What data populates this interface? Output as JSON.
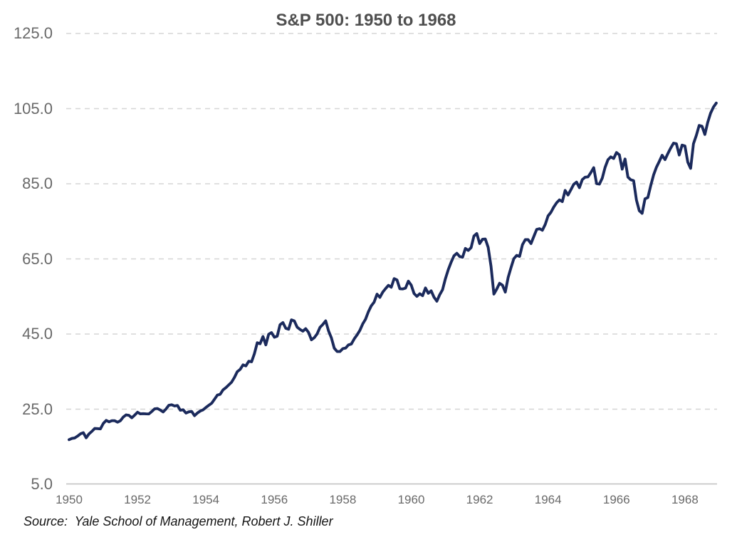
{
  "title": "S&P 500: 1950 to 1968",
  "source_note": "Source:  Yale School of Management, Robert J. Shiller",
  "colors": {
    "line": "#1b2a5c",
    "grid": "#d6d6d6",
    "axis_baseline": "#bfbfbf",
    "title_text": "#4f4f4f",
    "tick_text": "#696969",
    "source_text": "#141414",
    "background": "#ffffff"
  },
  "y_axis": {
    "tick_labels": [
      "125.0",
      "105.0",
      "85.0",
      "65.0",
      "45.0",
      "25.0",
      "5.0"
    ],
    "min": 5.0,
    "max": 125.0,
    "step": 20.0
  },
  "x_axis": {
    "tick_labels": [
      "1950",
      "1952",
      "1954",
      "1956",
      "1958",
      "1960",
      "1962",
      "1964",
      "1966",
      "1968"
    ],
    "min": 1950,
    "max": 1969
  },
  "chart_data": {
    "type": "line",
    "title": "S&P 500: 1950 to 1968",
    "xlabel": "",
    "ylabel": "",
    "ylim": [
      5.0,
      125.0
    ],
    "xlim": [
      1950,
      1969
    ],
    "grid": "horizontal-dashed",
    "legend_position": "none",
    "series": [
      {
        "name": "S&P 500",
        "frequency": "monthly",
        "start_year": 1950,
        "end_year": 1968,
        "values": [
          16.88,
          17.21,
          17.35,
          17.84,
          18.44,
          18.74,
          17.38,
          18.43,
          19.08,
          19.87,
          19.83,
          19.75,
          21.21,
          22.0,
          21.63,
          21.92,
          21.93,
          21.55,
          21.93,
          22.89,
          23.48,
          23.36,
          22.71,
          23.41,
          24.19,
          23.75,
          23.81,
          23.74,
          23.73,
          24.38,
          25.08,
          25.18,
          24.78,
          24.26,
          25.03,
          26.04,
          26.18,
          25.86,
          25.99,
          24.71,
          24.84,
          23.95,
          24.29,
          24.39,
          23.27,
          23.97,
          24.5,
          24.83,
          25.46,
          26.02,
          26.57,
          27.63,
          28.73,
          28.96,
          30.13,
          30.73,
          31.45,
          32.18,
          33.44,
          34.97,
          35.6,
          36.79,
          36.5,
          37.76,
          37.6,
          39.78,
          42.69,
          42.43,
          44.34,
          42.11,
          44.95,
          45.37,
          44.15,
          44.43,
          47.49,
          48.05,
          46.54,
          46.27,
          48.78,
          48.49,
          46.84,
          46.24,
          45.76,
          46.44,
          45.43,
          43.47,
          44.03,
          45.05,
          46.78,
          47.55,
          48.51,
          45.84,
          43.98,
          41.24,
          40.35,
          40.33,
          41.12,
          41.26,
          42.11,
          42.34,
          43.7,
          44.75,
          45.98,
          47.7,
          48.96,
          50.95,
          52.5,
          53.49,
          55.62,
          54.77,
          56.15,
          57.1,
          57.96,
          57.46,
          59.74,
          59.4,
          57.05,
          57.0,
          57.23,
          59.06,
          58.03,
          55.78,
          55.02,
          55.73,
          55.22,
          57.26,
          55.84,
          56.51,
          54.81,
          53.73,
          55.47,
          56.8,
          59.72,
          62.17,
          64.12,
          65.83,
          66.5,
          65.62,
          65.44,
          67.79,
          67.26,
          68.0,
          71.08,
          71.74,
          69.07,
          70.22,
          70.29,
          68.05,
          62.99,
          55.63,
          56.97,
          58.52,
          58.0,
          56.17,
          60.04,
          62.64,
          65.06,
          65.92,
          65.67,
          68.76,
          70.14,
          70.11,
          69.07,
          70.98,
          72.85,
          73.03,
          72.62,
          74.17,
          76.45,
          77.39,
          78.8,
          79.94,
          80.72,
          80.24,
          83.22,
          82.0,
          83.41,
          84.85,
          85.44,
          83.96,
          86.12,
          86.75,
          86.83,
          87.97,
          89.28,
          85.04,
          84.91,
          86.49,
          89.38,
          91.39,
          92.15,
          91.73,
          93.32,
          92.69,
          88.88,
          91.6,
          86.78,
          86.06,
          85.84,
          80.65,
          77.81,
          77.13,
          80.99,
          81.33,
          84.45,
          87.36,
          89.42,
          90.96,
          92.59,
          91.43,
          93.01,
          94.49,
          95.81,
          95.66,
          92.66,
          95.3,
          95.04,
          90.75,
          89.09,
          95.67,
          97.87,
          100.53,
          100.3,
          98.11,
          101.34,
          103.76,
          105.4,
          106.48
        ]
      }
    ]
  }
}
